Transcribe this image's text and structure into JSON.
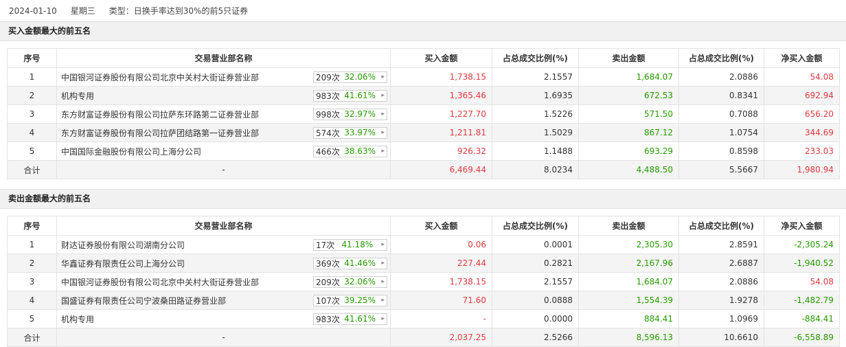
{
  "header": {
    "date": "2024-01-10",
    "weekday": "星期三",
    "type_text": "类型：日换手率达到30%的前5只证券"
  },
  "columns": [
    "序号",
    "交易营业部名称",
    "买入金额",
    "占总成交比例(%)",
    "卖出金额",
    "占总成交比例(%)",
    "净买入金额"
  ],
  "buy_section": {
    "title": "买入金额最大的前五名",
    "rows": [
      {
        "idx": "1",
        "name": "中国银河证券股份有限公司北京中关村大街证券营业部",
        "count": "209次",
        "pct": "32.06%",
        "buy": "1,738.15",
        "buy_ratio": "2.1557",
        "sell": "1,684.07",
        "sell_ratio": "2.0886",
        "net": "54.08"
      },
      {
        "idx": "2",
        "name": "机构专用",
        "count": "983次",
        "pct": "41.61%",
        "buy": "1,365.46",
        "buy_ratio": "1.6935",
        "sell": "672.53",
        "sell_ratio": "0.8341",
        "net": "692.94"
      },
      {
        "idx": "3",
        "name": "东方财富证券股份有限公司拉萨东环路第二证券营业部",
        "count": "998次",
        "pct": "32.97%",
        "buy": "1,227.70",
        "buy_ratio": "1.5226",
        "sell": "571.50",
        "sell_ratio": "0.7088",
        "net": "656.20"
      },
      {
        "idx": "4",
        "name": "东方财富证券股份有限公司拉萨团结路第一证券营业部",
        "count": "574次",
        "pct": "33.97%",
        "buy": "1,211.81",
        "buy_ratio": "1.5029",
        "sell": "867.12",
        "sell_ratio": "1.0754",
        "net": "344.69"
      },
      {
        "idx": "5",
        "name": "中国国际金融股份有限公司上海分公司",
        "count": "466次",
        "pct": "38.63%",
        "buy": "926.32",
        "buy_ratio": "1.1488",
        "sell": "693.29",
        "sell_ratio": "0.8598",
        "net": "233.03"
      }
    ],
    "total": {
      "label": "合计",
      "name": "-",
      "buy": "6,469.44",
      "buy_ratio": "8.0234",
      "sell": "4,488.50",
      "sell_ratio": "5.5667",
      "net": "1,980.94"
    }
  },
  "sell_section": {
    "title": "卖出金额最大的前五名",
    "rows": [
      {
        "idx": "1",
        "name": "财达证券股份有限公司湖南分公司",
        "count": "17次",
        "pct": "41.18%",
        "buy": "0.06",
        "buy_ratio": "0.0001",
        "sell": "2,305.30",
        "sell_ratio": "2.8591",
        "net": "-2,305.24"
      },
      {
        "idx": "2",
        "name": "华鑫证券有限责任公司上海分公司",
        "count": "369次",
        "pct": "41.46%",
        "buy": "227.44",
        "buy_ratio": "0.2821",
        "sell": "2,167.96",
        "sell_ratio": "2.6887",
        "net": "-1,940.52"
      },
      {
        "idx": "3",
        "name": "中国银河证券股份有限公司北京中关村大街证券营业部",
        "count": "209次",
        "pct": "32.06%",
        "buy": "1,738.15",
        "buy_ratio": "2.1557",
        "sell": "1,684.07",
        "sell_ratio": "2.0886",
        "net": "54.08"
      },
      {
        "idx": "4",
        "name": "国盛证券有限责任公司宁波桑田路证券营业部",
        "count": "107次",
        "pct": "39.25%",
        "buy": "71.60",
        "buy_ratio": "0.0888",
        "sell": "1,554.39",
        "sell_ratio": "1.9278",
        "net": "-1,482.79"
      },
      {
        "idx": "5",
        "name": "机构专用",
        "count": "983次",
        "pct": "41.61%",
        "buy": "-",
        "buy_ratio": "0.0000",
        "sell": "884.41",
        "sell_ratio": "1.0969",
        "net": "-884.41"
      }
    ],
    "total": {
      "label": "合计",
      "name": "-",
      "buy": "2,037.25",
      "buy_ratio": "2.5266",
      "sell": "8,596.13",
      "sell_ratio": "10.6610",
      "net": "-6,558.89"
    }
  },
  "colors": {
    "positive": "#e4393c",
    "negative": "#259a00"
  },
  "icons": {
    "badge_arrow": "caret-right-icon"
  }
}
